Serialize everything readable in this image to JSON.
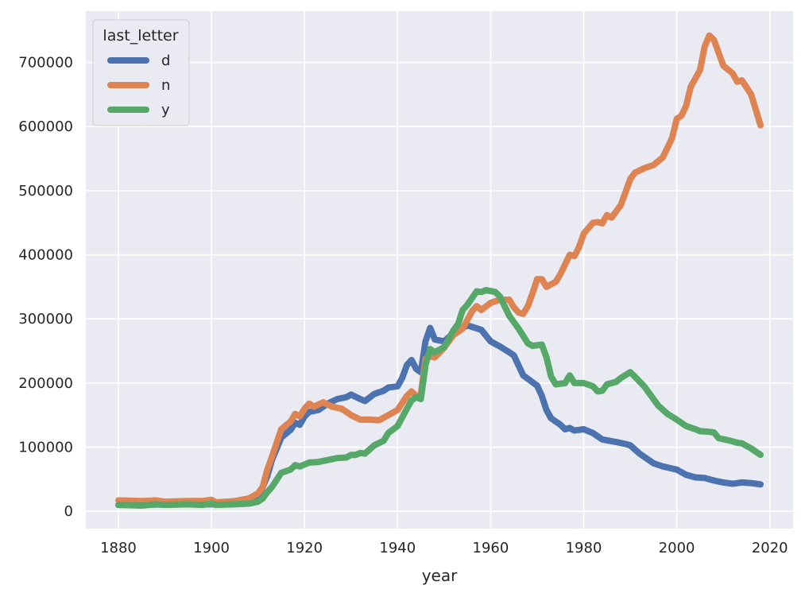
{
  "chart_data": {
    "type": "line",
    "xlabel": "year",
    "ylabel": "",
    "xlim": [
      1873,
      2025
    ],
    "ylim": [
      -27000,
      780000
    ],
    "x_ticks": [
      1880,
      1900,
      1920,
      1940,
      1960,
      1980,
      2000,
      2020
    ],
    "y_ticks": [
      0,
      100000,
      200000,
      300000,
      400000,
      500000,
      600000,
      700000
    ],
    "grid": true,
    "legend": {
      "title": "last_letter",
      "placement": "top-left"
    },
    "colors": {
      "background": "#eaeaf2",
      "grid": "#ffffff"
    },
    "series": [
      {
        "name": "d",
        "color": "#4c72b0",
        "points": [
          [
            1880,
            10000
          ],
          [
            1885,
            10000
          ],
          [
            1890,
            11000
          ],
          [
            1895,
            11000
          ],
          [
            1900,
            11000
          ],
          [
            1905,
            12000
          ],
          [
            1908,
            14000
          ],
          [
            1910,
            20000
          ],
          [
            1912,
            55000
          ],
          [
            1913,
            80000
          ],
          [
            1915,
            115000
          ],
          [
            1917,
            127000
          ],
          [
            1918,
            138000
          ],
          [
            1919,
            135000
          ],
          [
            1920,
            148000
          ],
          [
            1921,
            155000
          ],
          [
            1923,
            158000
          ],
          [
            1925,
            168000
          ],
          [
            1927,
            175000
          ],
          [
            1929,
            178000
          ],
          [
            1930,
            182000
          ],
          [
            1932,
            175000
          ],
          [
            1933,
            172000
          ],
          [
            1935,
            183000
          ],
          [
            1937,
            188000
          ],
          [
            1938,
            193000
          ],
          [
            1940,
            195000
          ],
          [
            1941,
            208000
          ],
          [
            1942,
            228000
          ],
          [
            1943,
            236000
          ],
          [
            1944,
            222000
          ],
          [
            1945,
            217000
          ],
          [
            1946,
            265000
          ],
          [
            1947,
            286000
          ],
          [
            1948,
            268000
          ],
          [
            1950,
            265000
          ],
          [
            1952,
            278000
          ],
          [
            1955,
            290000
          ],
          [
            1958,
            283000
          ],
          [
            1960,
            265000
          ],
          [
            1962,
            257000
          ],
          [
            1964,
            248000
          ],
          [
            1965,
            243000
          ],
          [
            1967,
            212000
          ],
          [
            1970,
            196000
          ],
          [
            1971,
            180000
          ],
          [
            1972,
            158000
          ],
          [
            1973,
            145000
          ],
          [
            1975,
            135000
          ],
          [
            1976,
            128000
          ],
          [
            1977,
            130000
          ],
          [
            1978,
            126000
          ],
          [
            1980,
            128000
          ],
          [
            1982,
            122000
          ],
          [
            1984,
            112000
          ],
          [
            1987,
            108000
          ],
          [
            1989,
            105000
          ],
          [
            1990,
            103000
          ],
          [
            1992,
            90000
          ],
          [
            1995,
            75000
          ],
          [
            1997,
            70000
          ],
          [
            2000,
            65000
          ],
          [
            2002,
            57000
          ],
          [
            2004,
            53000
          ],
          [
            2006,
            52000
          ],
          [
            2008,
            48000
          ],
          [
            2010,
            45000
          ],
          [
            2012,
            43000
          ],
          [
            2014,
            45000
          ],
          [
            2016,
            44000
          ],
          [
            2018,
            42000
          ]
        ]
      },
      {
        "name": "n",
        "color": "#dd8452",
        "points": [
          [
            1880,
            17000
          ],
          [
            1885,
            16000
          ],
          [
            1888,
            17000
          ],
          [
            1890,
            15000
          ],
          [
            1895,
            16000
          ],
          [
            1898,
            16000
          ],
          [
            1900,
            18000
          ],
          [
            1901,
            14000
          ],
          [
            1905,
            16000
          ],
          [
            1908,
            20000
          ],
          [
            1910,
            28000
          ],
          [
            1911,
            38000
          ],
          [
            1912,
            65000
          ],
          [
            1913,
            85000
          ],
          [
            1915,
            128000
          ],
          [
            1917,
            140000
          ],
          [
            1918,
            152000
          ],
          [
            1919,
            148000
          ],
          [
            1920,
            160000
          ],
          [
            1921,
            168000
          ],
          [
            1922,
            163000
          ],
          [
            1924,
            170000
          ],
          [
            1926,
            163000
          ],
          [
            1928,
            160000
          ],
          [
            1930,
            150000
          ],
          [
            1932,
            143000
          ],
          [
            1934,
            143000
          ],
          [
            1936,
            142000
          ],
          [
            1938,
            150000
          ],
          [
            1940,
            158000
          ],
          [
            1942,
            180000
          ],
          [
            1943,
            187000
          ],
          [
            1944,
            180000
          ],
          [
            1945,
            182000
          ],
          [
            1946,
            238000
          ],
          [
            1947,
            242000
          ],
          [
            1948,
            240000
          ],
          [
            1950,
            255000
          ],
          [
            1952,
            275000
          ],
          [
            1954,
            285000
          ],
          [
            1956,
            312000
          ],
          [
            1957,
            320000
          ],
          [
            1958,
            314000
          ],
          [
            1960,
            325000
          ],
          [
            1962,
            330000
          ],
          [
            1964,
            330000
          ],
          [
            1965,
            318000
          ],
          [
            1966,
            310000
          ],
          [
            1967,
            308000
          ],
          [
            1968,
            320000
          ],
          [
            1969,
            340000
          ],
          [
            1970,
            362000
          ],
          [
            1971,
            362000
          ],
          [
            1972,
            350000
          ],
          [
            1974,
            358000
          ],
          [
            1975,
            370000
          ],
          [
            1977,
            400000
          ],
          [
            1978,
            398000
          ],
          [
            1979,
            412000
          ],
          [
            1980,
            433000
          ],
          [
            1982,
            450000
          ],
          [
            1983,
            451000
          ],
          [
            1984,
            449000
          ],
          [
            1985,
            462000
          ],
          [
            1986,
            458000
          ],
          [
            1988,
            478000
          ],
          [
            1990,
            518000
          ],
          [
            1991,
            528000
          ],
          [
            1993,
            535000
          ],
          [
            1995,
            540000
          ],
          [
            1997,
            552000
          ],
          [
            1999,
            582000
          ],
          [
            2000,
            612000
          ],
          [
            2001,
            617000
          ],
          [
            2002,
            632000
          ],
          [
            2003,
            662000
          ],
          [
            2004,
            675000
          ],
          [
            2005,
            688000
          ],
          [
            2006,
            725000
          ],
          [
            2007,
            742000
          ],
          [
            2008,
            735000
          ],
          [
            2010,
            695000
          ],
          [
            2012,
            683000
          ],
          [
            2013,
            670000
          ],
          [
            2014,
            672000
          ],
          [
            2016,
            650000
          ],
          [
            2018,
            602000
          ]
        ]
      },
      {
        "name": "y",
        "color": "#55a868",
        "points": [
          [
            1880,
            10000
          ],
          [
            1885,
            9000
          ],
          [
            1888,
            11000
          ],
          [
            1890,
            10000
          ],
          [
            1895,
            11000
          ],
          [
            1898,
            10000
          ],
          [
            1900,
            12000
          ],
          [
            1901,
            10000
          ],
          [
            1905,
            11000
          ],
          [
            1908,
            12000
          ],
          [
            1910,
            15000
          ],
          [
            1911,
            20000
          ],
          [
            1912,
            30000
          ],
          [
            1913,
            38000
          ],
          [
            1915,
            60000
          ],
          [
            1917,
            65000
          ],
          [
            1918,
            72000
          ],
          [
            1919,
            70000
          ],
          [
            1921,
            76000
          ],
          [
            1923,
            77000
          ],
          [
            1925,
            80000
          ],
          [
            1927,
            83000
          ],
          [
            1929,
            84000
          ],
          [
            1930,
            88000
          ],
          [
            1931,
            88000
          ],
          [
            1932,
            91000
          ],
          [
            1933,
            90000
          ],
          [
            1935,
            103000
          ],
          [
            1937,
            110000
          ],
          [
            1938,
            122000
          ],
          [
            1940,
            133000
          ],
          [
            1942,
            160000
          ],
          [
            1943,
            173000
          ],
          [
            1944,
            178000
          ],
          [
            1945,
            175000
          ],
          [
            1946,
            228000
          ],
          [
            1947,
            253000
          ],
          [
            1948,
            248000
          ],
          [
            1950,
            256000
          ],
          [
            1952,
            282000
          ],
          [
            1953,
            292000
          ],
          [
            1954,
            314000
          ],
          [
            1955,
            322000
          ],
          [
            1957,
            343000
          ],
          [
            1958,
            342000
          ],
          [
            1959,
            345000
          ],
          [
            1961,
            342000
          ],
          [
            1962,
            335000
          ],
          [
            1963,
            320000
          ],
          [
            1964,
            305000
          ],
          [
            1966,
            285000
          ],
          [
            1968,
            262000
          ],
          [
            1969,
            258000
          ],
          [
            1971,
            260000
          ],
          [
            1972,
            240000
          ],
          [
            1973,
            210000
          ],
          [
            1974,
            198000
          ],
          [
            1976,
            200000
          ],
          [
            1977,
            212000
          ],
          [
            1978,
            200000
          ],
          [
            1980,
            200000
          ],
          [
            1982,
            195000
          ],
          [
            1983,
            187000
          ],
          [
            1984,
            188000
          ],
          [
            1985,
            198000
          ],
          [
            1987,
            202000
          ],
          [
            1988,
            208000
          ],
          [
            1990,
            217000
          ],
          [
            1991,
            210000
          ],
          [
            1993,
            195000
          ],
          [
            1995,
            175000
          ],
          [
            1996,
            165000
          ],
          [
            1998,
            152000
          ],
          [
            2000,
            143000
          ],
          [
            2002,
            133000
          ],
          [
            2004,
            128000
          ],
          [
            2005,
            125000
          ],
          [
            2007,
            124000
          ],
          [
            2008,
            123000
          ],
          [
            2009,
            114000
          ],
          [
            2011,
            111000
          ],
          [
            2013,
            107000
          ],
          [
            2014,
            106000
          ],
          [
            2016,
            98000
          ],
          [
            2018,
            88000
          ]
        ]
      }
    ]
  }
}
